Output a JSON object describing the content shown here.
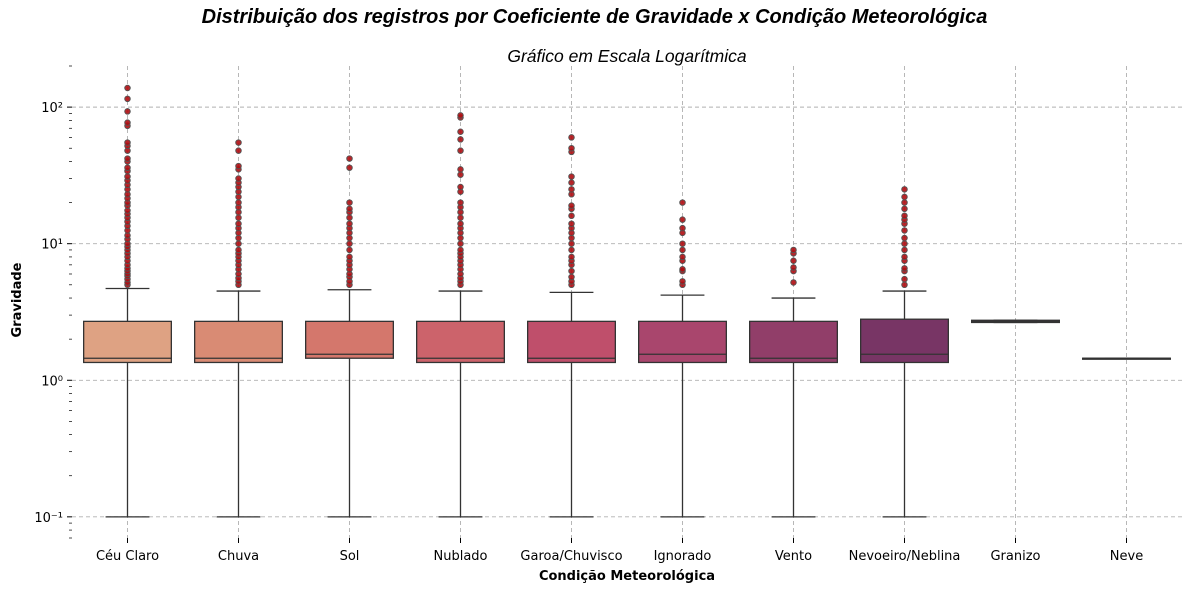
{
  "figure": {
    "suptitle": "Distribuição dos registros por Coeficiente de Gravidade x Condição Meteorológica"
  },
  "chart_data": {
    "type": "box",
    "title": "Gráfico em Escala Logarítmica",
    "xlabel": "Condição Meteorológica",
    "ylabel": "Gravidade",
    "yscale": "log",
    "ylim": [
      0.07,
      200
    ],
    "yticks": [
      {
        "value": 0.1,
        "label": "10⁻¹"
      },
      {
        "value": 1,
        "label": "10⁰"
      },
      {
        "value": 10,
        "label": "10¹"
      },
      {
        "value": 100,
        "label": "10²"
      }
    ],
    "grid": true,
    "box_edge_color": "#333333",
    "flier_color": "#b00d12",
    "categories": [
      "Céu Claro",
      "Chuva",
      "Sol",
      "Nublado",
      "Garoa/Chuvisco",
      "Ignorado",
      "Vento",
      "Nevoeiro/Neblina",
      "Granizo",
      "Neve"
    ],
    "boxes": [
      {
        "category": "Céu Claro",
        "color": "#dea283",
        "whislo": 0.1,
        "q1": 1.35,
        "median": 1.45,
        "q3": 2.7,
        "whishi": 4.7,
        "fliers": [
          5.0,
          5.2,
          5.5,
          5.8,
          6.0,
          6.3,
          6.6,
          7.0,
          7.5,
          8.0,
          8.5,
          9.0,
          9.5,
          10.0,
          10.8,
          11.5,
          12.5,
          13.5,
          14.5,
          15.5,
          16.5,
          17.5,
          19.0,
          20.0,
          21.5,
          23.0,
          25.0,
          27.0,
          29.0,
          31.0,
          34.0,
          36.0,
          40.0,
          42.0,
          48.0,
          52.0,
          55.0,
          73.0,
          77.0,
          93.0,
          115.0,
          138.0
        ]
      },
      {
        "category": "Chuva",
        "color": "#d98b74",
        "whislo": 0.1,
        "q1": 1.35,
        "median": 1.45,
        "q3": 2.7,
        "whishi": 4.5,
        "fliers": [
          5.0,
          5.3,
          5.6,
          6.0,
          6.5,
          7.0,
          7.5,
          8.0,
          8.5,
          9.0,
          10.0,
          11.0,
          12.0,
          13.0,
          14.0,
          15.5,
          17.0,
          18.5,
          20.0,
          22.0,
          24.0,
          26.0,
          28.0,
          30.0,
          35.0,
          37.0,
          48.0,
          55.0
        ]
      },
      {
        "category": "Sol",
        "color": "#d4776c",
        "whislo": 0.1,
        "q1": 1.45,
        "median": 1.55,
        "q3": 2.7,
        "whishi": 4.6,
        "fliers": [
          5.0,
          5.3,
          5.7,
          6.0,
          6.5,
          7.0,
          7.5,
          8.0,
          9.0,
          10.0,
          11.0,
          12.0,
          13.0,
          14.0,
          15.5,
          17.0,
          18.0,
          20.0,
          36.0,
          42.0
        ]
      },
      {
        "category": "Nublado",
        "color": "#cc636b",
        "whislo": 0.1,
        "q1": 1.35,
        "median": 1.45,
        "q3": 2.7,
        "whishi": 4.5,
        "fliers": [
          5.0,
          5.3,
          5.6,
          6.0,
          6.5,
          7.0,
          7.5,
          8.0,
          8.5,
          9.0,
          10.0,
          11.0,
          12.0,
          13.0,
          14.0,
          15.5,
          17.0,
          18.5,
          20.0,
          24.0,
          26.0,
          32.0,
          35.0,
          48.0,
          58.0,
          66.0,
          84.0,
          87.0
        ]
      },
      {
        "category": "Garoa/Chuvisco",
        "color": "#bf4f6b",
        "whislo": 0.1,
        "q1": 1.35,
        "median": 1.45,
        "q3": 2.7,
        "whishi": 4.4,
        "fliers": [
          5.0,
          5.3,
          5.7,
          6.3,
          7.0,
          7.5,
          8.0,
          9.0,
          10.0,
          11.0,
          12.0,
          13.0,
          14.0,
          16.0,
          18.0,
          19.0,
          23.0,
          25.0,
          28.0,
          31.0,
          47.0,
          50.0,
          60.0
        ]
      },
      {
        "category": "Ignorado",
        "color": "#a9466d",
        "whislo": 0.1,
        "q1": 1.35,
        "median": 1.55,
        "q3": 2.7,
        "whishi": 4.2,
        "fliers": [
          5.0,
          5.3,
          6.3,
          6.5,
          7.5,
          8.0,
          9.0,
          10.0,
          12.0,
          13.0,
          15.0,
          20.0
        ]
      },
      {
        "category": "Vento",
        "color": "#913e69",
        "whislo": 0.1,
        "q1": 1.35,
        "median": 1.45,
        "q3": 2.7,
        "whishi": 4.0,
        "fliers": [
          5.2,
          6.3,
          6.7,
          7.5,
          8.5,
          9.0
        ]
      },
      {
        "category": "Nevoeiro/Neblina",
        "color": "#783565",
        "whislo": 0.1,
        "q1": 1.35,
        "median": 1.55,
        "q3": 2.8,
        "whishi": 4.5,
        "fliers": [
          5.0,
          5.5,
          6.3,
          6.6,
          7.5,
          8.0,
          9.0,
          10.0,
          11.0,
          12.5,
          14.0,
          15.0,
          16.0,
          18.0,
          20.0,
          22.0,
          25.0
        ]
      },
      {
        "category": "Granizo",
        "color": "#5f2b5f",
        "whislo": 2.65,
        "q1": 2.65,
        "median": 2.7,
        "q3": 2.75,
        "whishi": 2.75,
        "fliers": []
      },
      {
        "category": "Neve",
        "color": "#472253",
        "whislo": 1.45,
        "q1": 1.45,
        "median": 1.45,
        "q3": 1.45,
        "whishi": 1.45,
        "fliers": []
      }
    ]
  }
}
